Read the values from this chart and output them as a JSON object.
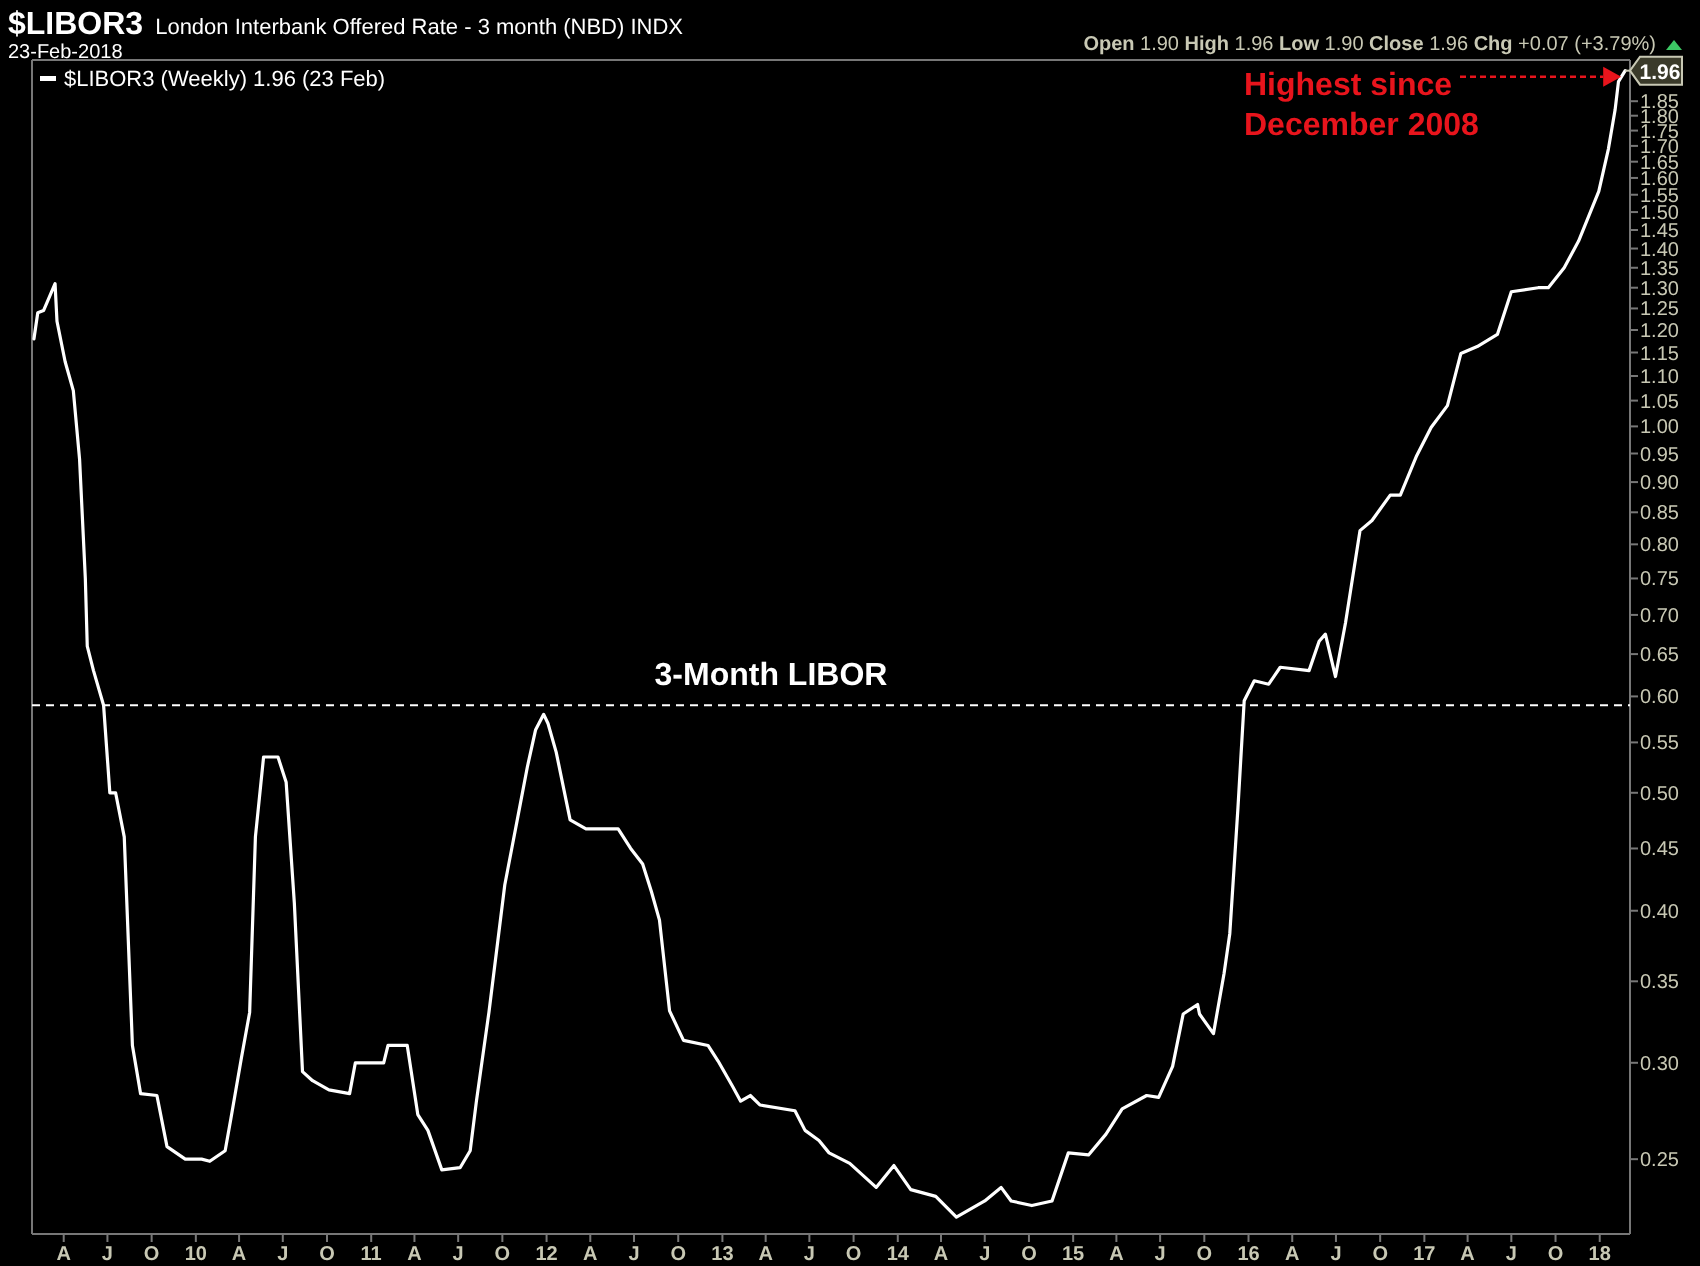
{
  "chart_data": {
    "type": "line",
    "title": "$LIBOR3",
    "subtitle": "London Interbank Offered Rate - 3 month (NBD) INDX",
    "log": true,
    "grid": false,
    "legend": "top left",
    "line_style": "solid",
    "xlim": [
      "2009-01-25",
      "2018-03-05"
    ],
    "xticks": [
      {
        "value": "2009-04-01",
        "label": "A"
      },
      {
        "value": "2009-07-01",
        "label": "J"
      },
      {
        "value": "2009-10-01",
        "label": "O"
      },
      {
        "value": "2010-01-01",
        "label": "10"
      },
      {
        "value": "2010-04-01",
        "label": "A"
      },
      {
        "value": "2010-07-01",
        "label": "J"
      },
      {
        "value": "2010-10-01",
        "label": "O"
      },
      {
        "value": "2011-01-01",
        "label": "11"
      },
      {
        "value": "2011-04-01",
        "label": "A"
      },
      {
        "value": "2011-07-01",
        "label": "J"
      },
      {
        "value": "2011-10-01",
        "label": "O"
      },
      {
        "value": "2012-01-01",
        "label": "12"
      },
      {
        "value": "2012-04-01",
        "label": "A"
      },
      {
        "value": "2012-07-01",
        "label": "J"
      },
      {
        "value": "2012-10-01",
        "label": "O"
      },
      {
        "value": "2013-01-01",
        "label": "13"
      },
      {
        "value": "2013-04-01",
        "label": "A"
      },
      {
        "value": "2013-07-01",
        "label": "J"
      },
      {
        "value": "2013-10-01",
        "label": "O"
      },
      {
        "value": "2014-01-01",
        "label": "14"
      },
      {
        "value": "2014-04-01",
        "label": "A"
      },
      {
        "value": "2014-07-01",
        "label": "J"
      },
      {
        "value": "2014-10-01",
        "label": "O"
      },
      {
        "value": "2015-01-01",
        "label": "15"
      },
      {
        "value": "2015-04-01",
        "label": "A"
      },
      {
        "value": "2015-07-01",
        "label": "J"
      },
      {
        "value": "2015-10-01",
        "label": "O"
      },
      {
        "value": "2016-01-01",
        "label": "16"
      },
      {
        "value": "2016-04-01",
        "label": "A"
      },
      {
        "value": "2016-07-01",
        "label": "J"
      },
      {
        "value": "2016-10-01",
        "label": "O"
      },
      {
        "value": "2017-01-01",
        "label": "17"
      },
      {
        "value": "2017-04-01",
        "label": "A"
      },
      {
        "value": "2017-07-01",
        "label": "J"
      },
      {
        "value": "2017-10-01",
        "label": "O"
      },
      {
        "value": "2018-01-01",
        "label": "18"
      }
    ],
    "ylim": [
      0.217,
      2.0
    ],
    "yticks": [
      {
        "value": 0.25,
        "label": "0.25"
      },
      {
        "value": 0.3,
        "label": "0.30"
      },
      {
        "value": 0.35,
        "label": "0.35"
      },
      {
        "value": 0.4,
        "label": "0.40"
      },
      {
        "value": 0.45,
        "label": "0.45"
      },
      {
        "value": 0.5,
        "label": "0.50"
      },
      {
        "value": 0.55,
        "label": "0.55"
      },
      {
        "value": 0.6,
        "label": "0.60"
      },
      {
        "value": 0.65,
        "label": "0.65"
      },
      {
        "value": 0.7,
        "label": "0.70"
      },
      {
        "value": 0.75,
        "label": "0.75"
      },
      {
        "value": 0.8,
        "label": "0.80"
      },
      {
        "value": 0.85,
        "label": "0.85"
      },
      {
        "value": 0.9,
        "label": "0.90"
      },
      {
        "value": 0.95,
        "label": "0.95"
      },
      {
        "value": 1.0,
        "label": "1.00"
      },
      {
        "value": 1.05,
        "label": "1.05"
      },
      {
        "value": 1.1,
        "label": "1.10"
      },
      {
        "value": 1.15,
        "label": "1.15"
      },
      {
        "value": 1.2,
        "label": "1.20"
      },
      {
        "value": 1.25,
        "label": "1.25"
      },
      {
        "value": 1.3,
        "label": "1.30"
      },
      {
        "value": 1.35,
        "label": "1.35"
      },
      {
        "value": 1.4,
        "label": "1.40"
      },
      {
        "value": 1.45,
        "label": "1.45"
      },
      {
        "value": 1.5,
        "label": "1.50"
      },
      {
        "value": 1.55,
        "label": "1.55"
      },
      {
        "value": 1.6,
        "label": "1.60"
      },
      {
        "value": 1.65,
        "label": "1.65"
      },
      {
        "value": 1.7,
        "label": "1.70"
      },
      {
        "value": 1.75,
        "label": "1.75"
      },
      {
        "value": 1.8,
        "label": "1.80"
      },
      {
        "value": 1.85,
        "label": "1.85"
      }
    ],
    "ref_lines": [
      {
        "axis": "y",
        "value": 0.59,
        "label": "3-Month LIBOR",
        "color": "#ffffff",
        "line_style": "dashed"
      }
    ],
    "annotations": [
      "23-Feb-2018",
      "Open 1.90 High 1.96 Low 1.90 Close 1.96 Chg +0.07 (+3.79%)",
      {
        "text": "1.96",
        "x": "2018-02-23",
        "y": 1.96
      },
      "Highest since December 2008"
    ],
    "series": [
      {
        "name": "$LIBOR3 (Weekly) 1.96 (23 Feb)",
        "color": "#ffffff",
        "x": [
          "2009-01-29",
          "2009-02-06",
          "2009-02-18",
          "2009-03-14",
          "2009-03-18",
          "2009-04-04",
          "2009-04-21",
          "2009-05-04",
          "2009-05-16",
          "2009-05-20",
          "2009-06-02",
          "2009-06-23",
          "2009-07-06",
          "2009-07-18",
          "2009-08-05",
          "2009-08-22",
          "2009-09-08",
          "2009-10-12",
          "2009-11-02",
          "2009-12-10",
          "2010-01-13",
          "2010-01-30",
          "2010-03-03",
          "2010-03-15",
          "2010-04-06",
          "2010-04-23",
          "2010-05-05",
          "2010-05-22",
          "2010-06-21",
          "2010-07-08",
          "2010-07-25",
          "2010-08-11",
          "2010-09-01",
          "2010-10-05",
          "2010-11-17",
          "2010-11-29",
          "2011-01-27",
          "2011-02-05",
          "2011-03-17",
          "2011-04-08",
          "2011-04-29",
          "2011-05-28",
          "2011-07-05",
          "2011-07-26",
          "2011-08-08",
          "2011-09-03",
          "2011-10-06",
          "2011-11-01",
          "2011-11-22",
          "2011-12-09",
          "2011-12-26",
          "2012-01-04",
          "2012-01-21",
          "2012-02-19",
          "2012-03-23",
          "2012-05-29",
          "2012-06-24",
          "2012-07-19",
          "2012-08-06",
          "2012-08-23",
          "2012-09-13",
          "2012-10-12",
          "2012-12-02",
          "2012-12-23",
          "2013-01-22",
          "2013-02-08",
          "2013-02-28",
          "2013-03-20",
          "2013-06-01",
          "2013-06-22",
          "2013-07-21",
          "2013-08-11",
          "2013-09-23",
          "2013-11-17",
          "2013-12-24",
          "2014-01-28",
          "2014-03-21",
          "2014-05-03",
          "2014-07-01",
          "2014-08-04",
          "2014-08-25",
          "2014-10-07",
          "2014-11-18",
          "2014-12-22",
          "2015-02-02",
          "2015-03-10",
          "2015-04-13",
          "2015-06-03",
          "2015-06-28",
          "2015-07-27",
          "2015-08-18",
          "2015-09-17",
          "2015-09-21",
          "2015-10-20",
          "2015-11-11",
          "2015-11-23",
          "2015-12-10",
          "2015-12-23",
          "2016-01-13",
          "2016-02-12",
          "2016-03-07",
          "2016-05-06",
          "2016-05-27",
          "2016-06-09",
          "2016-06-30",
          "2016-07-21",
          "2016-08-20",
          "2016-09-14",
          "2016-10-22",
          "2016-11-12",
          "2016-12-16",
          "2017-01-15",
          "2017-02-18",
          "2017-03-18",
          "2017-04-21",
          "2017-06-02",
          "2017-07-01",
          "2017-08-26",
          "2017-09-16",
          "2017-10-19",
          "2017-11-18",
          "2017-12-30",
          "2018-01-19",
          "2018-02-02",
          "2018-02-09",
          "2018-02-23"
        ],
        "values": [
          1.18,
          1.24,
          1.245,
          1.31,
          1.22,
          1.13,
          1.07,
          0.94,
          0.75,
          0.66,
          0.63,
          0.59,
          0.5,
          0.5,
          0.46,
          0.31,
          0.283,
          0.282,
          0.256,
          0.25,
          0.25,
          0.249,
          0.254,
          0.27,
          0.303,
          0.33,
          0.46,
          0.535,
          0.535,
          0.51,
          0.406,
          0.295,
          0.29,
          0.285,
          0.283,
          0.3,
          0.3,
          0.31,
          0.31,
          0.272,
          0.264,
          0.245,
          0.246,
          0.254,
          0.279,
          0.33,
          0.42,
          0.475,
          0.525,
          0.563,
          0.58,
          0.57,
          0.54,
          0.475,
          0.467,
          0.467,
          0.45,
          0.437,
          0.415,
          0.393,
          0.331,
          0.313,
          0.31,
          0.301,
          0.287,
          0.279,
          0.282,
          0.277,
          0.274,
          0.264,
          0.259,
          0.253,
          0.248,
          0.237,
          0.247,
          0.236,
          0.233,
          0.224,
          0.231,
          0.237,
          0.231,
          0.229,
          0.231,
          0.253,
          0.252,
          0.262,
          0.275,
          0.282,
          0.281,
          0.298,
          0.329,
          0.335,
          0.329,
          0.317,
          0.355,
          0.383,
          0.486,
          0.595,
          0.618,
          0.614,
          0.634,
          0.63,
          0.666,
          0.675,
          0.623,
          0.69,
          0.821,
          0.837,
          0.878,
          0.878,
          0.946,
          0.998,
          1.04,
          1.148,
          1.163,
          1.19,
          1.29,
          1.3,
          1.3,
          1.35,
          1.42,
          1.56,
          1.69,
          1.82,
          1.92,
          1.96
        ]
      }
    ]
  }
}
